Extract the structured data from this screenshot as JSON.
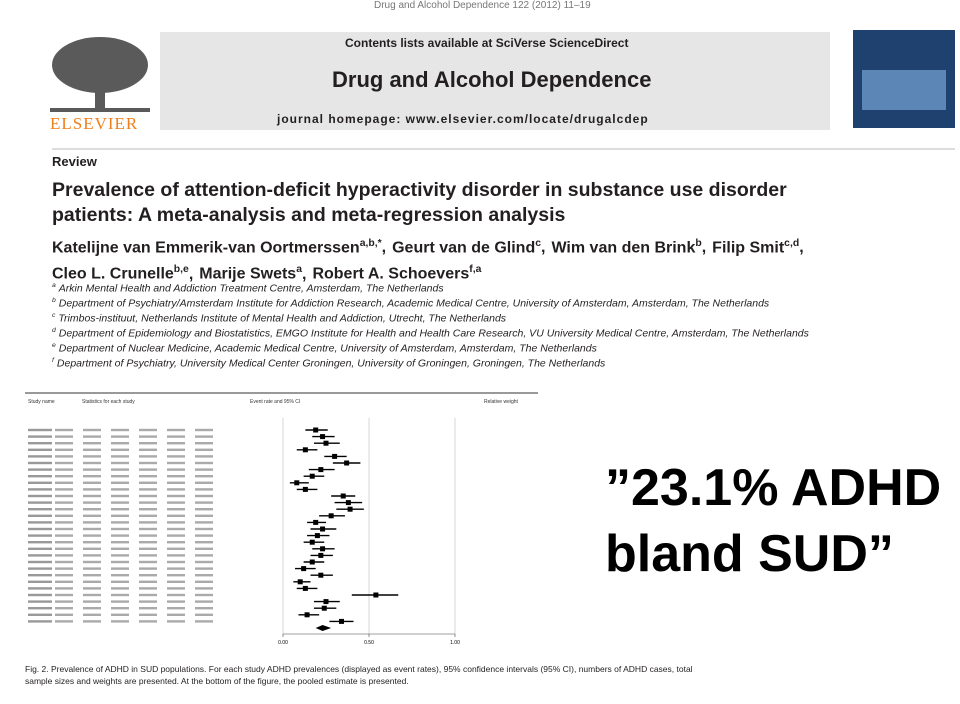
{
  "journal_header": {
    "citation": "Drug and Alcohol Dependence 122 (2012) 11–19",
    "contents": "Contents lists available at SciVerse ScienceDirect",
    "journal": "Drug and Alcohol Dependence",
    "homepage": "journal homepage: www.elsevier.com/locate/drugalcdep",
    "publisher": "ELSEVIER"
  },
  "article": {
    "section": "Review",
    "title_lines": [
      "Prevalence of attention-deficit hyperactivity disorder in substance use disorder",
      "patients: A meta-analysis and meta-regression analysis"
    ],
    "authors_lines": [
      [
        {
          "name": "Katelijne van Emmerik-van Oortmerssen",
          "sup": "a,b,*",
          "sep": ","
        },
        {
          "name": "Geurt van de Glind",
          "sup": "c",
          "sep": ","
        },
        {
          "name": "Wim van den Brink",
          "sup": "b",
          "sep": ","
        },
        {
          "name": "Filip Smit",
          "sup": "c,d",
          "sep": ","
        }
      ],
      [
        {
          "name": "Cleo L. Crunelle",
          "sup": "b,e",
          "sep": ","
        },
        {
          "name": "Marije Swets",
          "sup": "a",
          "sep": ","
        },
        {
          "name": "Robert A. Schoevers",
          "sup": "f,a"
        }
      ]
    ],
    "affiliations": [
      {
        "sup": "a",
        "text": "Arkin Mental Health and Addiction Treatment Centre, Amsterdam, The Netherlands"
      },
      {
        "sup": "b",
        "text": "Department of Psychiatry/Amsterdam Institute for Addiction Research, Academic Medical Centre, University of Amsterdam, Amsterdam, The Netherlands"
      },
      {
        "sup": "c",
        "text": "Trimbos-instituut, Netherlands Institute of Mental Health and Addiction, Utrecht, The Netherlands"
      },
      {
        "sup": "d",
        "text": "Department of Epidemiology and Biostatistics, EMGO Institute for Health and Health Care Research, VU University Medical Centre, Amsterdam, The Netherlands"
      },
      {
        "sup": "e",
        "text": "Department of Nuclear Medicine, Academic Medical Centre, University of Amsterdam, Amsterdam, The Netherlands"
      },
      {
        "sup": "f",
        "text": "Department of Psychiatry, University Medical Center Groningen, University of Groningen, Groningen, The Netherlands"
      }
    ]
  },
  "figure": {
    "headers": [
      "Study name",
      "Statistics for each study",
      "Event rate and 95% CI",
      "Relative weight"
    ],
    "xlim": [
      0,
      1
    ],
    "xticks": [
      {
        "value": 0,
        "label": "0.00"
      },
      {
        "value": 0.5,
        "label": "0.50"
      },
      {
        "value": 1,
        "label": "1.00"
      }
    ],
    "rates": [
      0.19,
      0.23,
      0.25,
      0.13,
      0.3,
      0.37,
      0.22,
      0.17,
      0.08,
      0.13,
      0.35,
      0.38,
      0.39,
      0.28,
      0.19,
      0.23,
      0.2,
      0.17,
      0.23,
      0.22,
      0.17,
      0.12,
      0.22,
      0.1,
      0.13,
      0.54,
      0.25,
      0.24,
      0.14,
      0.34
    ],
    "lower": [
      0.13,
      0.17,
      0.18,
      0.08,
      0.24,
      0.29,
      0.15,
      0.12,
      0.04,
      0.08,
      0.28,
      0.3,
      0.31,
      0.21,
      0.14,
      0.16,
      0.14,
      0.12,
      0.17,
      0.16,
      0.12,
      0.07,
      0.16,
      0.06,
      0.08,
      0.4,
      0.18,
      0.18,
      0.09,
      0.27
    ],
    "upper": [
      0.26,
      0.3,
      0.33,
      0.2,
      0.37,
      0.45,
      0.3,
      0.24,
      0.15,
      0.2,
      0.42,
      0.46,
      0.47,
      0.36,
      0.25,
      0.31,
      0.27,
      0.24,
      0.3,
      0.29,
      0.24,
      0.19,
      0.29,
      0.16,
      0.2,
      0.67,
      0.33,
      0.31,
      0.21,
      0.41
    ],
    "pooled": {
      "rate": 0.23,
      "lower": 0.19,
      "upper": 0.28
    },
    "caption_lines": [
      "Fig. 2. Prevalence of ADHD in SUD populations. For each study ADHD prevalences (displayed as event rates), 95% confidence intervals (95% CI), numbers of ADHD cases, total",
      "sample sizes and weights are presented. At the bottom of the figure, the pooled estimate is presented."
    ]
  },
  "quote": {
    "lines": [
      "”23.1% ADHD",
      "bland SUD”"
    ]
  }
}
